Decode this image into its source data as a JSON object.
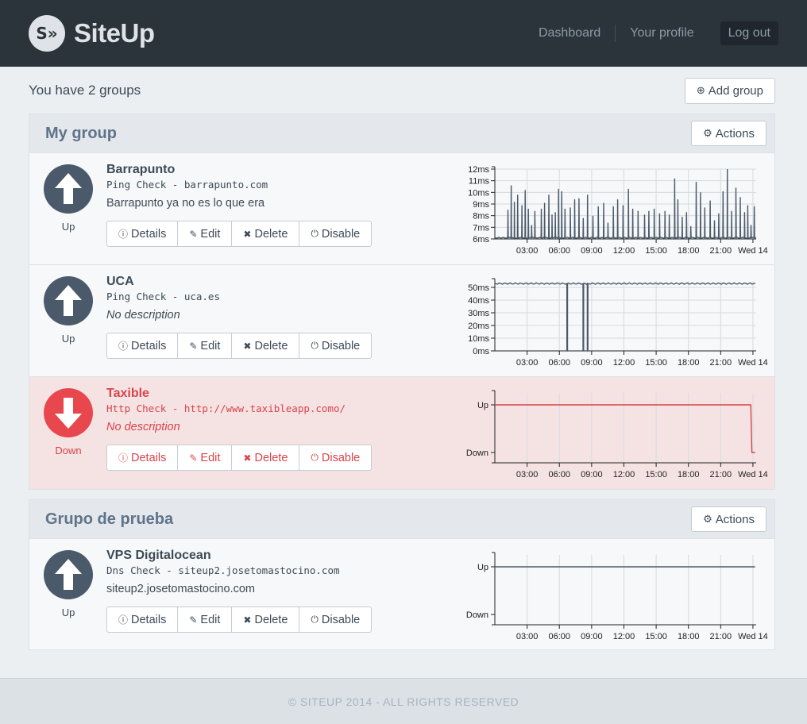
{
  "header": {
    "logo_text": "S»",
    "brand": "SiteUp",
    "nav": [
      "Dashboard",
      "Your profile"
    ],
    "logout": "Log out"
  },
  "page": {
    "groups_count": "You have 2 groups",
    "add_group": "Add group"
  },
  "icons": {
    "plus": "⊕",
    "gear": "⚙",
    "info": "ⓘ",
    "pencil": "✎",
    "times": "✖",
    "power": "⏻"
  },
  "groups": [
    {
      "title": "My group",
      "actions": "Actions",
      "checks": [
        {
          "name": "Barrapunto",
          "meta": "Ping Check - barrapunto.com",
          "description": "Barrapunto ya no es lo que era",
          "status": "Up",
          "chart_type": "ping"
        },
        {
          "name": "UCA",
          "meta": "Ping Check - uca.es",
          "description": "No description",
          "status": "Up",
          "chart_type": "ping"
        },
        {
          "name": "Taxible",
          "meta": "Http Check - http://www.taxibleapp.como/",
          "description": "No description",
          "status": "Down",
          "chart_type": "updown"
        }
      ]
    },
    {
      "title": "Grupo de prueba",
      "actions": "Actions",
      "checks": [
        {
          "name": "VPS Digitalocean",
          "meta": "Dns Check - siteup2.josetomastocino.com",
          "description": "siteup2.josetomastocino.com",
          "status": "Up",
          "chart_type": "updown"
        }
      ]
    }
  ],
  "buttons": {
    "details": "Details",
    "edit": "Edit",
    "delete": "Delete",
    "disable": "Disable"
  },
  "chart_data": [
    {
      "type": "line",
      "series_of": "Barrapunto",
      "x_ticks": [
        "03:00",
        "06:00",
        "09:00",
        "12:00",
        "15:00",
        "18:00",
        "21:00",
        "Wed 14"
      ],
      "y_ticks": [
        "6ms",
        "7ms",
        "8ms",
        "9ms",
        "10ms",
        "11ms",
        "12ms"
      ],
      "ylim": [
        6,
        12
      ],
      "baseline": 6.1,
      "spikes": [
        [
          1.2,
          8.5
        ],
        [
          1.5,
          10.6
        ],
        [
          1.8,
          9.2
        ],
        [
          2.1,
          9.8
        ],
        [
          2.5,
          8.9
        ],
        [
          2.8,
          10.2
        ],
        [
          3.1,
          8.6
        ],
        [
          3.4,
          7.2
        ],
        [
          3.7,
          8.4
        ],
        [
          4.3,
          8.6
        ],
        [
          4.6,
          9.1
        ],
        [
          5.0,
          9.8
        ],
        [
          5.3,
          8.1
        ],
        [
          5.6,
          8.3
        ],
        [
          5.9,
          10.3
        ],
        [
          6.2,
          10.1
        ],
        [
          6.5,
          8.6
        ],
        [
          7.0,
          8.7
        ],
        [
          7.4,
          9.4
        ],
        [
          7.8,
          9.5
        ],
        [
          8.2,
          7.8
        ],
        [
          8.6,
          9.8
        ],
        [
          9.1,
          8.0
        ],
        [
          9.6,
          8.8
        ],
        [
          10.1,
          9.1
        ],
        [
          10.5,
          7.4
        ],
        [
          11.0,
          8.8
        ],
        [
          11.4,
          9.4
        ],
        [
          11.9,
          8.9
        ],
        [
          12.4,
          10.3
        ],
        [
          12.8,
          8.6
        ],
        [
          13.3,
          8.4
        ],
        [
          13.9,
          8.1
        ],
        [
          14.3,
          8.4
        ],
        [
          14.8,
          8.6
        ],
        [
          15.3,
          8.2
        ],
        [
          15.8,
          8.4
        ],
        [
          16.2,
          8.1
        ],
        [
          16.7,
          11.2
        ],
        [
          17.0,
          9.4
        ],
        [
          17.4,
          7.9
        ],
        [
          17.8,
          8.3
        ],
        [
          18.2,
          7.1
        ],
        [
          18.7,
          10.9
        ],
        [
          19.1,
          10.0
        ],
        [
          19.5,
          8.7
        ],
        [
          20.0,
          9.3
        ],
        [
          20.4,
          7.6
        ],
        [
          20.8,
          8.2
        ],
        [
          21.2,
          10.1
        ],
        [
          21.6,
          12.0
        ],
        [
          22.0,
          8.4
        ],
        [
          22.4,
          10.4
        ],
        [
          22.8,
          9.6
        ],
        [
          23.2,
          8.3
        ],
        [
          23.5,
          8.9
        ],
        [
          23.8,
          7.2
        ],
        [
          24.1,
          8.8
        ]
      ]
    },
    {
      "type": "line",
      "series_of": "UCA",
      "x_ticks": [
        "03:00",
        "06:00",
        "09:00",
        "12:00",
        "15:00",
        "18:00",
        "21:00",
        "Wed 14"
      ],
      "y_ticks": [
        "0ms",
        "10ms",
        "20ms",
        "30ms",
        "40ms",
        "50ms"
      ],
      "ylim": [
        0,
        55
      ],
      "baseline": 53,
      "dips": [
        [
          6.7,
          0
        ],
        [
          8.2,
          0
        ],
        [
          8.6,
          0
        ]
      ]
    },
    {
      "type": "line",
      "series_of": "Taxible",
      "x_ticks": [
        "03:00",
        "06:00",
        "09:00",
        "12:00",
        "15:00",
        "18:00",
        "21:00",
        "Wed 14"
      ],
      "y_ticks": [
        "Down",
        "Up"
      ],
      "values": [
        {
          "x": 0,
          "y": "Up"
        },
        {
          "x": 23.8,
          "y": "Up"
        },
        {
          "x": 23.9,
          "y": "Down"
        },
        {
          "x": 24.2,
          "y": "Down"
        }
      ]
    },
    {
      "type": "line",
      "series_of": "VPS Digitalocean",
      "x_ticks": [
        "03:00",
        "06:00",
        "09:00",
        "12:00",
        "15:00",
        "18:00",
        "21:00",
        "Wed 14"
      ],
      "y_ticks": [
        "Down",
        "Up"
      ],
      "values": [
        {
          "x": 0,
          "y": "Up"
        },
        {
          "x": 24.2,
          "y": "Up"
        }
      ]
    }
  ],
  "footer": "© SITEUP 2014 - ALL RIGHTS RESERVED"
}
